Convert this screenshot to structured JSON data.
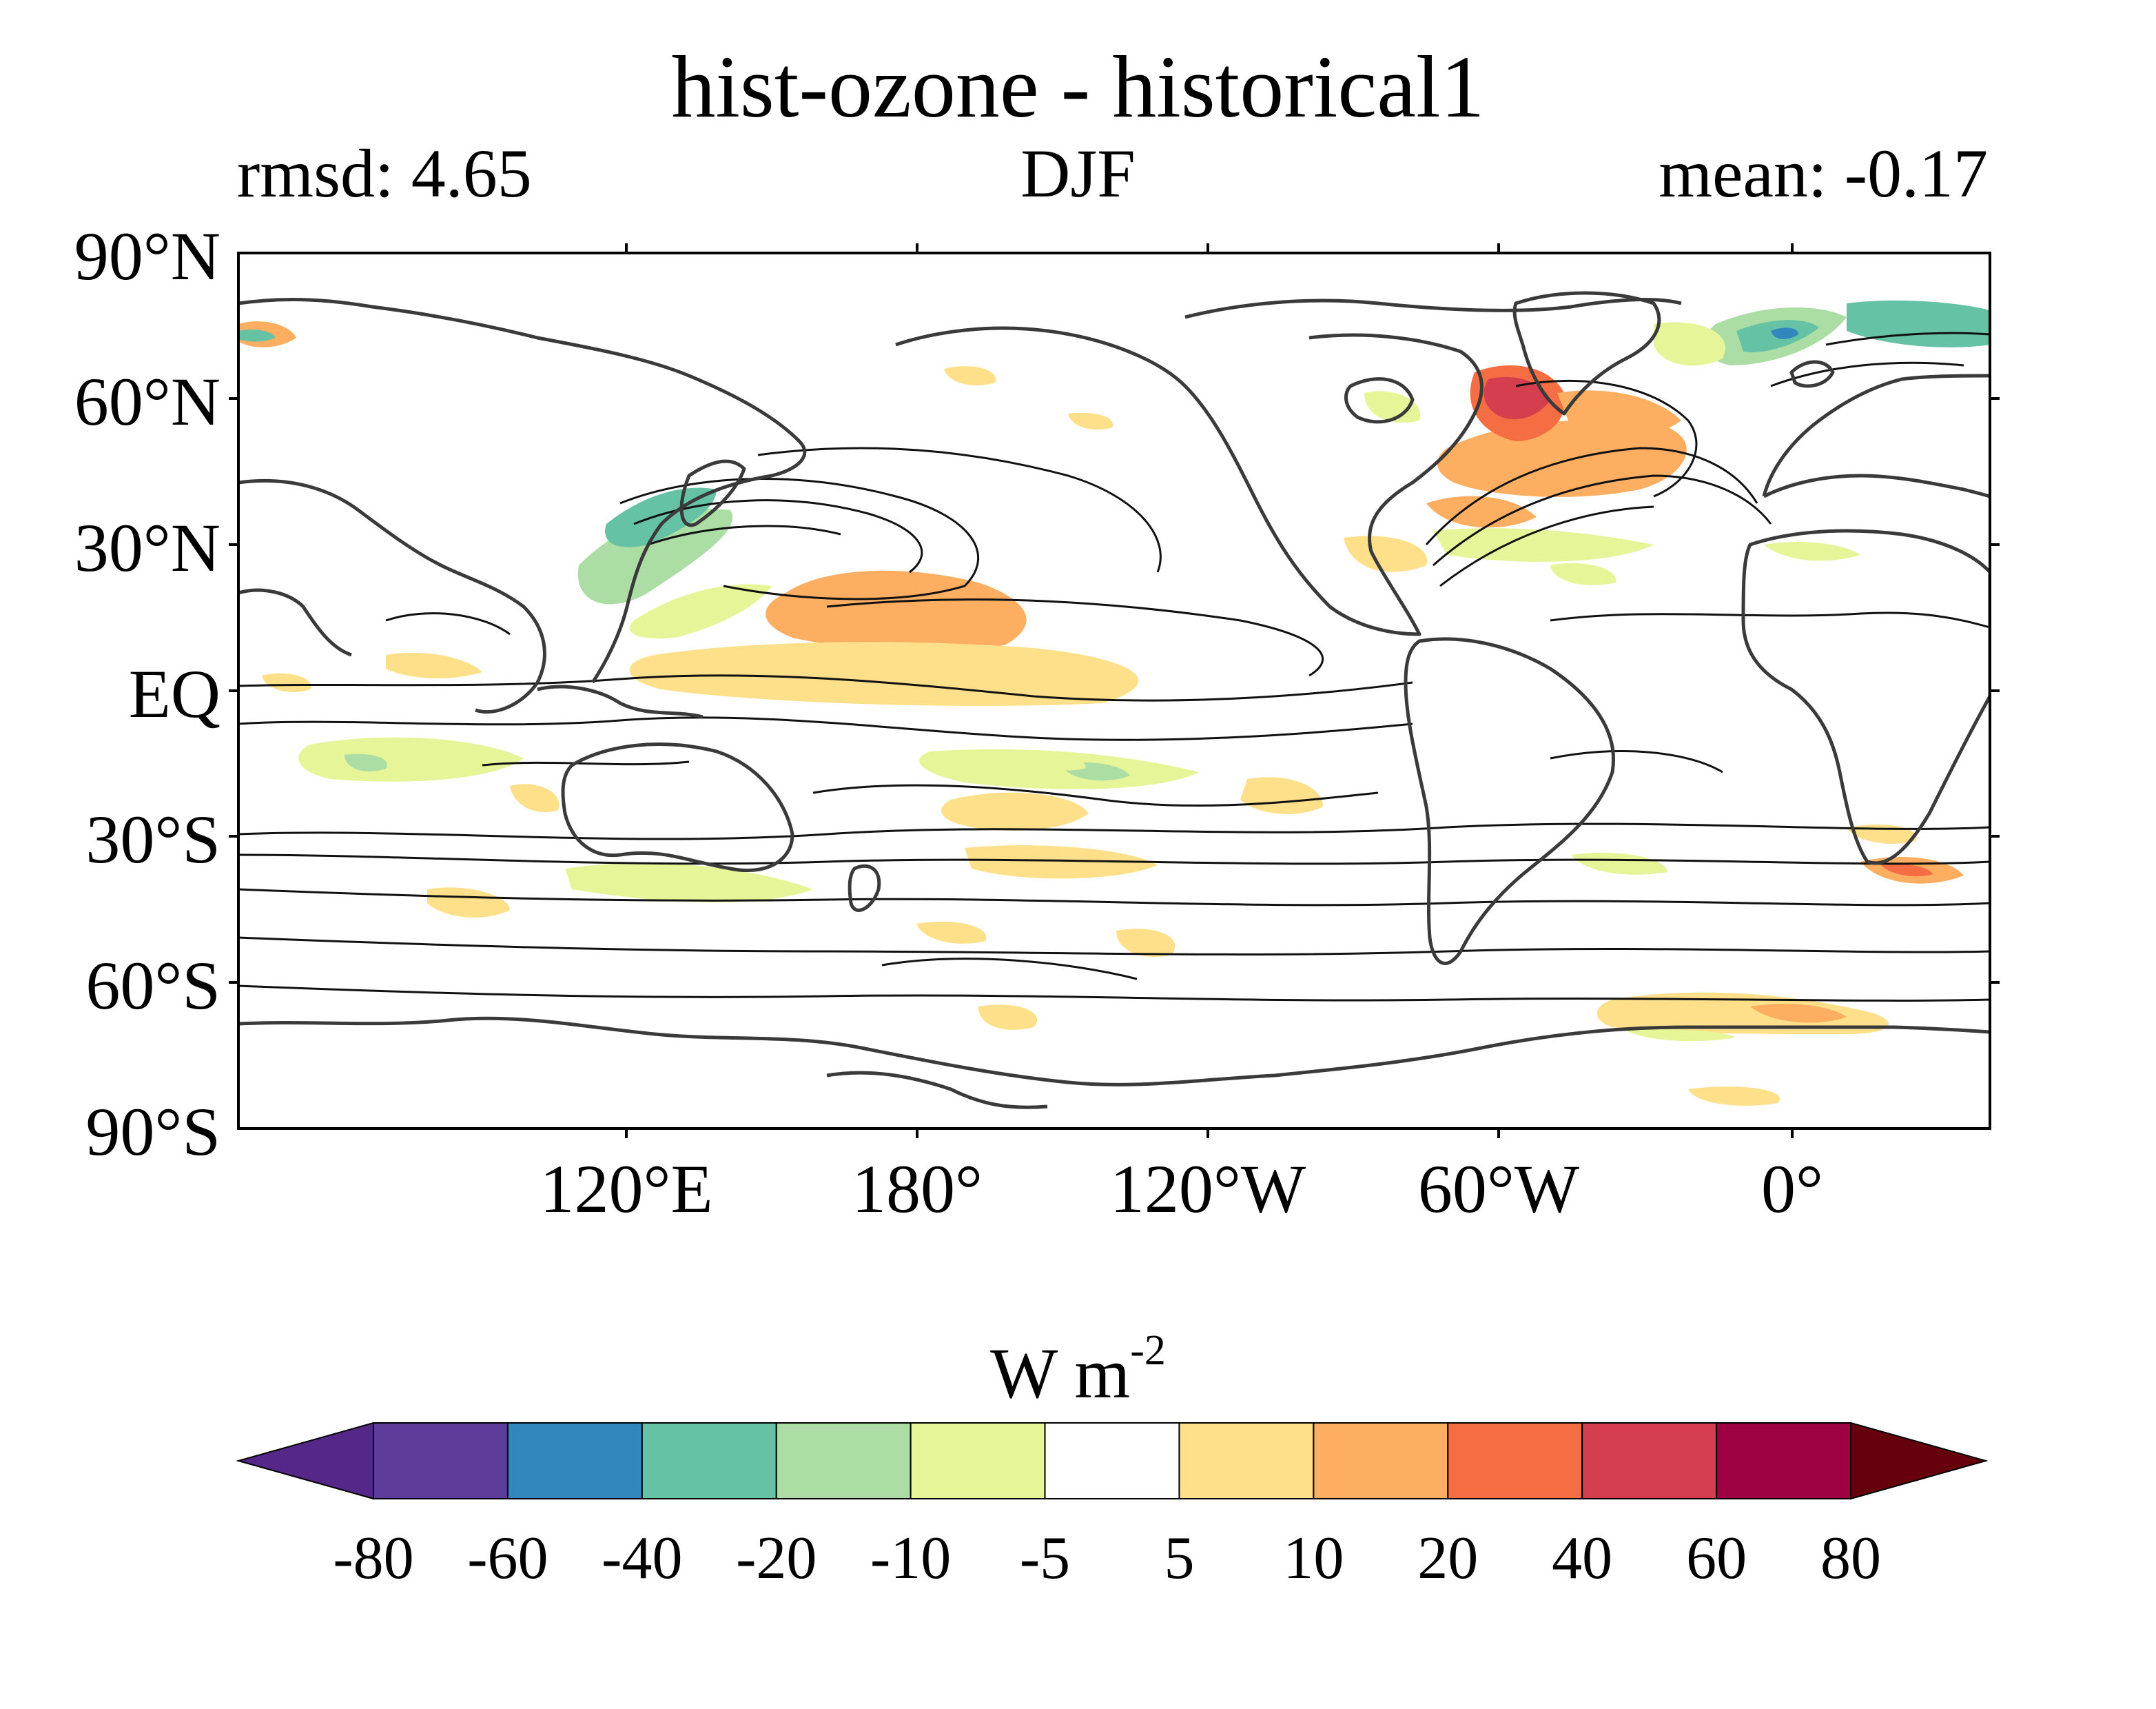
{
  "title": "hist-ozone - historical1",
  "subtitle_left": "rmsd: 4.65",
  "subtitle_center": "DJF",
  "subtitle_right": "mean: -0.17",
  "lat_labels": [
    "90°N",
    "60°N",
    "30°N",
    "EQ",
    "30°S",
    "60°S",
    "90°S"
  ],
  "lon_labels": [
    "120°E",
    "180°",
    "120°W",
    "60°W",
    "0°"
  ],
  "colorbar": {
    "units_main": "W m",
    "units_exp": "-2",
    "labels": [
      "-80",
      "-60",
      "-40",
      "-20",
      "-10",
      "-5",
      "5",
      "10",
      "20",
      "40",
      "60",
      "80"
    ],
    "colors": [
      "#5e3c99",
      "#3288bd",
      "#66c2a5",
      "#abdda4",
      "#e6f598",
      "#ffffff",
      "#fee08b",
      "#fdae61",
      "#f46d43",
      "#d53e4f",
      "#9e0142"
    ],
    "under_color": "#542788",
    "over_color": "#67000d"
  },
  "map": {
    "land_outline_color": "#3a3a3a",
    "contour_color": "#111111",
    "colors": {
      "strong_negative": "#3288bd",
      "negative": "#66c2a5",
      "weak_negative": "#abdda4",
      "slight_negative": "#e6f598",
      "slight_positive": "#fee08b",
      "positive": "#fdae61",
      "strong_positive": "#f46d43",
      "very_strong_positive": "#d53e4f"
    }
  }
}
